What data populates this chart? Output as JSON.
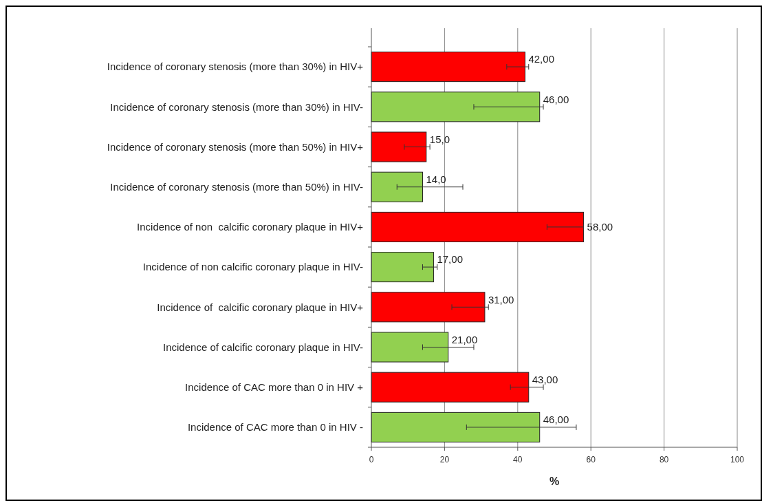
{
  "chart_data": {
    "type": "bar",
    "orientation": "horizontal",
    "xlabel": "%",
    "categories": [
      "Incidence of coronary stenosis (more than 30%) in HIV+",
      "Incidence of coronary stenosis (more than 30%) in HIV-",
      "Incidence of coronary stenosis (more than 50%) in HIV+",
      "Incidence of coronary stenosis (more than 50%) in HIV-",
      "Incidence of non  calcific coronary plaque in HIV+",
      "Incidence of non calcific coronary plaque in HIV-",
      "Incidence of  calcific coronary plaque in HIV+",
      "Incidence of calcific coronary plaque in HIV-",
      "Incidence of CAC more than 0 in HIV +",
      "Incidence of CAC more than 0 in HIV -"
    ],
    "values": [
      42,
      46,
      15,
      14,
      58,
      17,
      31,
      21,
      43,
      46
    ],
    "colors": [
      "#fe0000",
      "#92d050",
      "#fe0000",
      "#92d050",
      "#fe0000",
      "#92d050",
      "#fe0000",
      "#92d050",
      "#fe0000",
      "#92d050"
    ],
    "errors": [
      [
        37,
        43
      ],
      [
        28,
        47
      ],
      [
        9,
        16
      ],
      [
        7,
        25
      ],
      [
        48,
        58
      ],
      [
        14,
        18
      ],
      [
        22,
        32
      ],
      [
        14,
        28
      ],
      [
        38,
        47
      ],
      [
        26,
        56
      ]
    ],
    "value_labels": [
      "42,00",
      "46,00",
      "15,0",
      "14,0",
      "58,00",
      "17,00",
      "31,00",
      "21,00",
      "43,00",
      "46,00"
    ],
    "xlim": [
      0,
      100
    ],
    "xticks": [
      0,
      20,
      40,
      60,
      80,
      100
    ],
    "grid": "x"
  }
}
